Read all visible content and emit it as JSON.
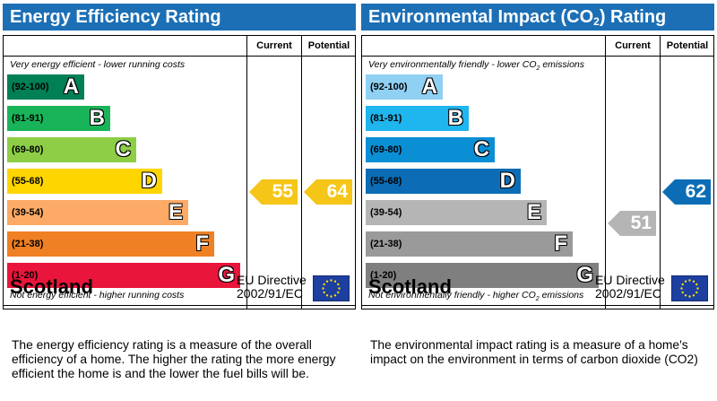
{
  "chart_data": [
    {
      "type": "bar",
      "title": "Energy Efficiency Rating",
      "columns": [
        "Current",
        "Potential"
      ],
      "caption_top": "Very energy efficient - lower running costs",
      "caption_bottom": "Not energy efficient - higher running costs",
      "bands": [
        {
          "range": "(92-100)",
          "letter": "A",
          "color": "#008054"
        },
        {
          "range": "(81-91)",
          "letter": "B",
          "color": "#19b459"
        },
        {
          "range": "(69-80)",
          "letter": "C",
          "color": "#8dce46"
        },
        {
          "range": "(55-68)",
          "letter": "D",
          "color": "#ffd500"
        },
        {
          "range": "(39-54)",
          "letter": "E",
          "color": "#fcaa65"
        },
        {
          "range": "(21-38)",
          "letter": "F",
          "color": "#ef8023"
        },
        {
          "range": "(1-20)",
          "letter": "G",
          "color": "#e9153b"
        }
      ],
      "current": {
        "value": 55,
        "band": "D",
        "color": "#f5c518"
      },
      "potential": {
        "value": 64,
        "band": "D",
        "color": "#f5c518"
      },
      "country": "Scotland",
      "directive": [
        "EU Directive",
        "2002/91/EC"
      ],
      "description": "The energy efficiency rating is a measure of the overall efficiency of a home.  The higher the rating the more energy efficient the home is and the lower the fuel bills will be."
    },
    {
      "type": "bar",
      "title": "Environmental Impact (CO",
      "title_sub": "2",
      "title_end": ") Rating",
      "columns": [
        "Current",
        "Potential"
      ],
      "caption_top": "Very environmentally friendly - lower CO",
      "caption_top_sub": "2",
      "caption_top_end": " emissions",
      "caption_bottom": "Not environmentally friendly - higher CO",
      "caption_bottom_sub": "2",
      "caption_bottom_end": " emissions",
      "bands": [
        {
          "range": "(92-100)",
          "letter": "A",
          "color": "#8fd0f3"
        },
        {
          "range": "(81-91)",
          "letter": "B",
          "color": "#1fb5ee"
        },
        {
          "range": "(69-80)",
          "letter": "C",
          "color": "#0a8fd5"
        },
        {
          "range": "(55-68)",
          "letter": "D",
          "color": "#0c6db6"
        },
        {
          "range": "(39-54)",
          "letter": "E",
          "color": "#b5b5b5"
        },
        {
          "range": "(21-38)",
          "letter": "F",
          "color": "#9a9a9a"
        },
        {
          "range": "(1-20)",
          "letter": "G",
          "color": "#7f7f7f"
        }
      ],
      "current": {
        "value": 51,
        "band": "E",
        "color": "#b5b5b5"
      },
      "potential": {
        "value": 62,
        "band": "D",
        "color": "#0c6db6"
      },
      "country": "Scotland",
      "directive": [
        "EU Directive",
        "2002/91/EC"
      ],
      "description": "The environmental impact rating is a measure of a home's impact on the environment in terms of carbon dioxide (CO2)"
    }
  ]
}
